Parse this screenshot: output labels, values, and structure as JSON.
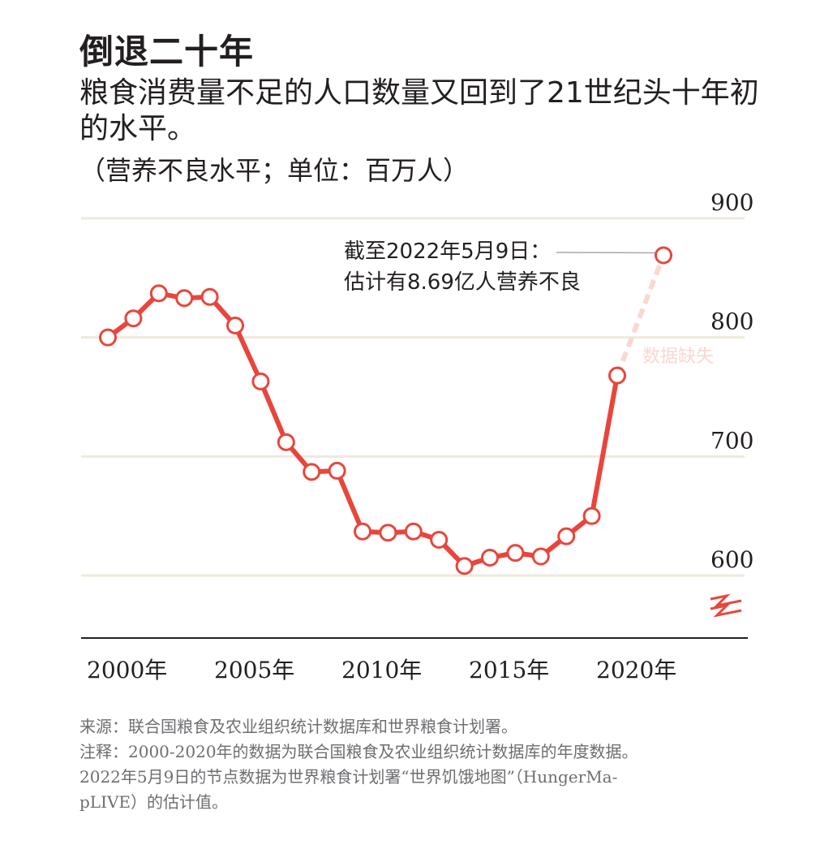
{
  "chart_data": {
    "type": "line",
    "title": "倒退二十年",
    "subtitle": "粮食消费量不足的人口数量又回到了21世纪头十年初的水平。",
    "unit_label": "（营养不良水平；单位：百万人）",
    "x": [
      2000,
      2001,
      2002,
      2003,
      2004,
      2005,
      2006,
      2007,
      2008,
      2009,
      2010,
      2011,
      2012,
      2013,
      2014,
      2015,
      2016,
      2017,
      2018,
      2019,
      2020
    ],
    "y_ticks": [
      900,
      800,
      700,
      600
    ],
    "x_ticks": [
      {
        "year": 2000,
        "label": "2000年"
      },
      {
        "year": 2005,
        "label": "2005年"
      },
      {
        "year": 2010,
        "label": "2010年"
      },
      {
        "year": 2015,
        "label": "2015年"
      },
      {
        "year": 2020,
        "label": "2020年"
      }
    ],
    "ylim": [
      550,
      910
    ],
    "series": [
      {
        "values": [
          800,
          816,
          837,
          833,
          834,
          810,
          763,
          712,
          687,
          688,
          637,
          636,
          637,
          630,
          608,
          615,
          619,
          616,
          633,
          650,
          768
        ],
        "color": "#e8463c"
      }
    ],
    "estimate_point": {
      "x": "2022年5月9日",
      "y": 869
    },
    "missing_label": "数据缺失",
    "annotation": {
      "line1": "截至2022年5月9日：",
      "line2": "估计有8.69亿人营养不良"
    },
    "axis_break": true
  },
  "notes": {
    "source": "来源：联合国粮食及农业组织统计数据库和世界粮食计划署。",
    "note1": "注释：2000-2020年的数据为联合国粮食及农业组织统计数据库的年度数据。",
    "note2": "2022年5月9日的节点数据为世界粮食计划署“世界饥饿地图”（HungerMa-",
    "note3": "pLIVE）的估计值。"
  },
  "colors": {
    "line": "#e8463c",
    "missing": "#f9d7d2",
    "grid": "#efe9dc",
    "axis": "#231f20",
    "note_text": "#6d6e71",
    "leader": "#a7a9ac"
  }
}
